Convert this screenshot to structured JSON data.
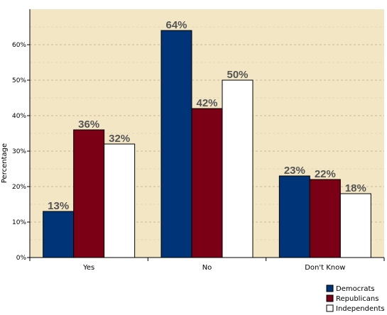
{
  "chart_data": {
    "type": "bar",
    "categories": [
      "Yes",
      "No",
      "Don't Know"
    ],
    "series": [
      {
        "name": "Democrats",
        "values": [
          13,
          64,
          23
        ],
        "color": "#003478"
      },
      {
        "name": "Republicans",
        "values": [
          36,
          42,
          22
        ],
        "color": "#7b0016"
      },
      {
        "name": "Independents",
        "values": [
          32,
          50,
          18
        ],
        "color": "#ffffff"
      }
    ],
    "data_labels": [
      [
        "13%",
        "64%",
        "23%"
      ],
      [
        "36%",
        "42%",
        "22%"
      ],
      [
        "32%",
        "50%",
        "18%"
      ]
    ],
    "ylabel": "Percentage",
    "ylim": [
      0,
      70
    ],
    "yticks": [
      0,
      10,
      20,
      30,
      40,
      50,
      60
    ],
    "ytick_labels": [
      "0%",
      "10%",
      "20%",
      "30%",
      "40%",
      "50%",
      "60%"
    ],
    "grid": true,
    "plot_background": "#f2e6c4",
    "legend_position": "bottom-right"
  }
}
